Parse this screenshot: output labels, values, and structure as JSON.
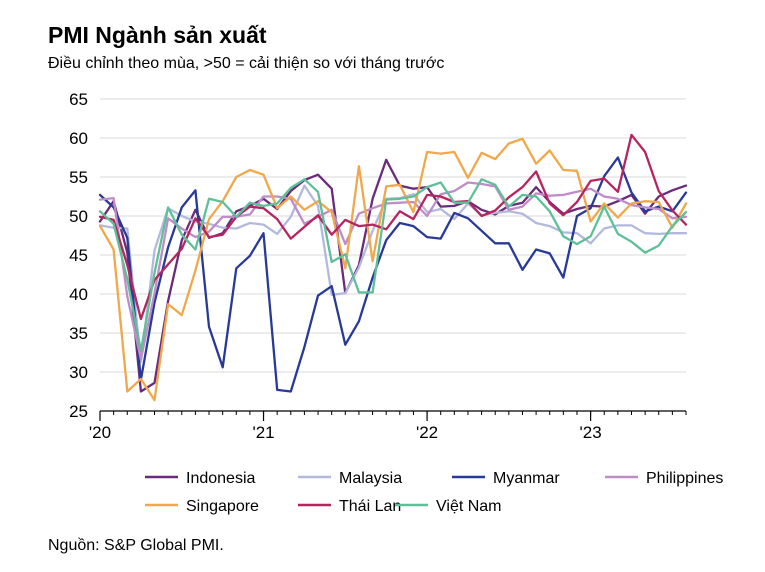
{
  "header": {
    "title": "PMI Ngành sản xuất",
    "subtitle": "Điều chỉnh theo mùa, >50 = cải thiện so với tháng trước"
  },
  "footer": {
    "source": "Nguồn: S&P Global PMI."
  },
  "chart_data": {
    "type": "line",
    "ylim": [
      25,
      65
    ],
    "yticks": [
      25,
      30,
      35,
      40,
      45,
      50,
      55,
      60,
      65
    ],
    "xlim": [
      0,
      43
    ],
    "xtick_labels": [
      {
        "label": "'20",
        "month_index": 0
      },
      {
        "label": "'21",
        "month_index": 12
      },
      {
        "label": "'22",
        "month_index": 24
      },
      {
        "label": "'23",
        "month_index": 36
      }
    ],
    "grid": "horizontal",
    "legend_position": "bottom",
    "series": [
      {
        "name": "Indonesia",
        "color": "#6a2b7a",
        "values": [
          49.3,
          51.9,
          45.3,
          27.5,
          28.6,
          39.1,
          46.9,
          50.8,
          47.2,
          47.8,
          50.6,
          51.3,
          52.2,
          50.9,
          53.2,
          54.6,
          55.3,
          53.5,
          40.1,
          43.7,
          52.2,
          57.2,
          53.9,
          53.5,
          53.7,
          51.2,
          51.3,
          51.9,
          50.8,
          50.2,
          51.3,
          51.7,
          53.7,
          51.8,
          50.3,
          50.9,
          51.3,
          51.2,
          51.9,
          52.7,
          50.3,
          52.5,
          53.3,
          53.9
        ]
      },
      {
        "name": "Malaysia",
        "color": "#b3b9dc",
        "values": [
          48.8,
          48.5,
          48.4,
          31.3,
          45.6,
          51.0,
          50.0,
          49.3,
          49.0,
          48.5,
          48.4,
          49.1,
          48.9,
          47.7,
          49.9,
          53.9,
          51.3,
          39.9,
          40.1,
          43.4,
          48.1,
          52.2,
          52.3,
          52.8,
          50.5,
          50.9,
          49.6,
          51.6,
          50.1,
          50.4,
          50.6,
          50.3,
          49.1,
          48.7,
          47.9,
          47.8,
          46.5,
          48.4,
          48.8,
          48.8,
          47.8,
          47.7,
          47.8,
          47.8
        ]
      },
      {
        "name": "Myanmar",
        "color": "#283a96",
        "values": [
          52.7,
          51.1,
          47.2,
          29.0,
          38.9,
          46.0,
          51.1,
          53.3,
          35.8,
          30.6,
          43.3,
          44.9,
          47.8,
          27.7,
          27.5,
          33.2,
          39.8,
          41.0,
          33.5,
          36.5,
          42.1,
          46.9,
          49.1,
          48.7,
          47.3,
          47.1,
          50.4,
          49.7,
          48.1,
          46.5,
          46.5,
          43.1,
          45.7,
          45.2,
          42.1,
          50.0,
          51.0,
          55.1,
          57.5,
          53.0,
          50.6,
          51.2,
          50.6,
          53.0
        ]
      },
      {
        "name": "Philippines",
        "color": "#c08cc7",
        "values": [
          52.1,
          52.3,
          39.7,
          31.6,
          40.1,
          49.7,
          48.4,
          47.3,
          48.0,
          49.9,
          49.9,
          50.2,
          52.5,
          52.5,
          52.2,
          49.0,
          49.9,
          50.8,
          46.4,
          50.3,
          51.0,
          51.6,
          51.7,
          51.8,
          50.0,
          52.8,
          53.2,
          54.3,
          54.1,
          53.8,
          50.8,
          51.2,
          52.9,
          52.6,
          52.7,
          53.1,
          53.5,
          52.5,
          52.2,
          51.4,
          51.1,
          50.9,
          49.7,
          49.9
        ]
      },
      {
        "name": "Singapore",
        "color": "#f0a84b",
        "values": [
          48.7,
          45.7,
          27.5,
          29.1,
          26.4,
          38.7,
          37.3,
          43.0,
          49.6,
          51.9,
          55.0,
          55.9,
          55.3,
          51.0,
          52.5,
          50.8,
          51.9,
          50.5,
          43.3,
          56.4,
          44.2,
          53.8,
          54.0,
          50.5,
          58.2,
          58.0,
          58.2,
          54.9,
          58.1,
          57.3,
          59.3,
          59.9,
          56.7,
          58.4,
          55.9,
          55.8,
          49.3,
          51.6,
          49.8,
          51.6,
          51.9,
          51.8,
          48.5,
          51.6
        ]
      },
      {
        "name": "Thái Lan",
        "color": "#b5255f",
        "values": [
          49.9,
          49.5,
          43.7,
          36.8,
          41.8,
          43.8,
          45.8,
          49.7,
          47.3,
          47.6,
          49.9,
          51.2,
          51.0,
          49.6,
          47.1,
          48.6,
          50.1,
          47.6,
          49.5,
          48.7,
          48.9,
          48.3,
          50.6,
          49.6,
          52.7,
          52.5,
          51.8,
          51.9,
          50.0,
          50.7,
          52.4,
          53.7,
          55.7,
          51.6,
          50.1,
          51.8,
          54.5,
          54.8,
          53.1,
          60.4,
          58.2,
          53.2,
          50.7,
          48.9
        ]
      },
      {
        "name": "Việt Nam",
        "color": "#5fbf99",
        "values": [
          50.6,
          49.0,
          41.9,
          32.7,
          42.7,
          51.1,
          47.6,
          45.7,
          52.2,
          51.8,
          49.9,
          51.7,
          51.3,
          51.6,
          53.6,
          54.7,
          53.1,
          44.1,
          45.1,
          40.2,
          40.2,
          52.1,
          52.2,
          52.5,
          53.7,
          54.3,
          51.7,
          51.7,
          54.7,
          54.0,
          51.2,
          52.7,
          52.5,
          50.6,
          47.4,
          46.4,
          47.4,
          51.2,
          47.7,
          46.7,
          45.3,
          46.2,
          48.7,
          50.5
        ]
      }
    ]
  }
}
